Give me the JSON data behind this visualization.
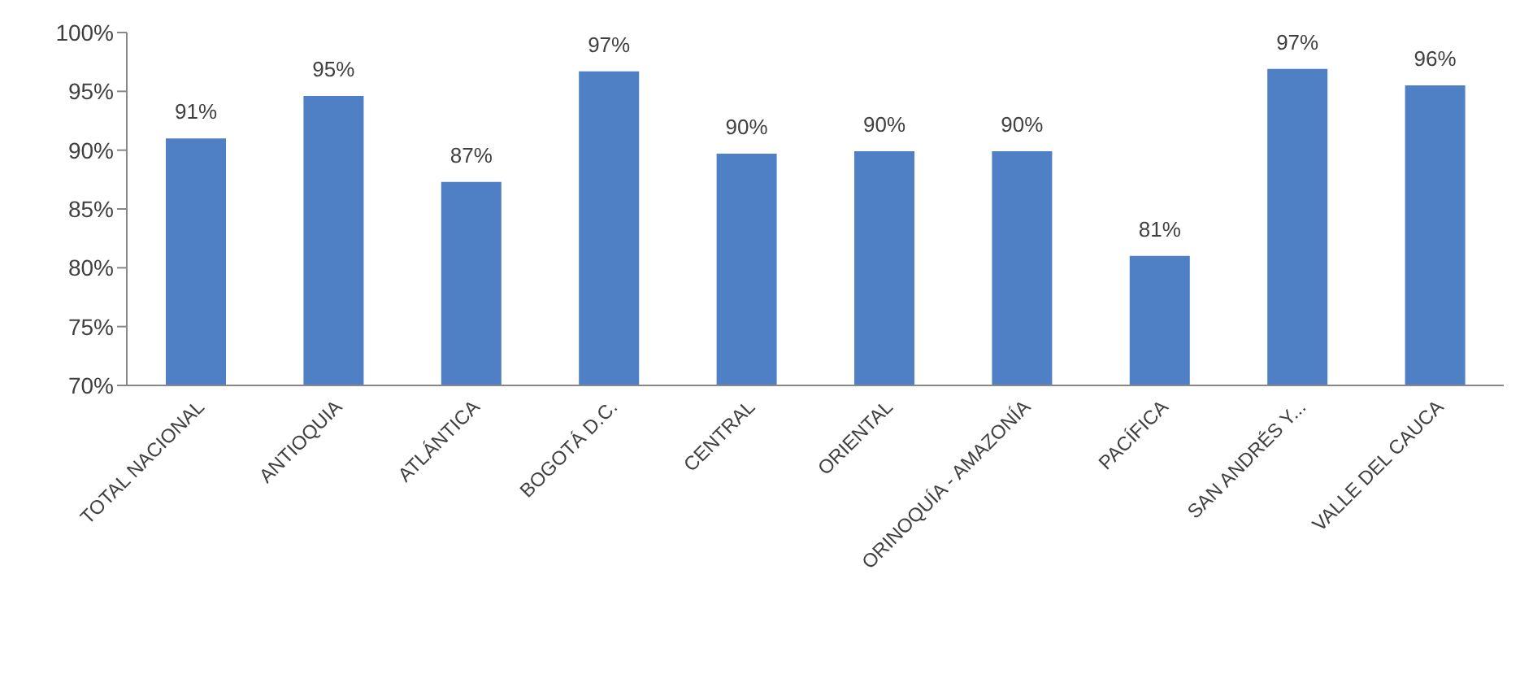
{
  "chart_data": {
    "type": "bar",
    "categories": [
      "TOTAL NACIONAL",
      "ANTIOQUIA",
      "ATLÁNTICA",
      "BOGOTÁ D.C.",
      "CENTRAL",
      "ORIENTAL",
      "ORINOQUÍA - AMAZONÍA",
      "PACÍFICA",
      "SAN ANDRÉS Y...",
      "VALLE DEL CAUCA"
    ],
    "values": [
      91,
      94.6,
      87.3,
      96.7,
      89.7,
      89.9,
      89.9,
      81,
      96.9,
      95.5
    ],
    "value_labels": [
      "91%",
      "95%",
      "87%",
      "97%",
      "90%",
      "90%",
      "90%",
      "81%",
      "97%",
      "96%"
    ],
    "color": "#4f7fc4",
    "ylim": [
      70,
      100
    ],
    "yticks": [
      {
        "value": 70,
        "label": "70%"
      },
      {
        "value": 75,
        "label": "75%"
      },
      {
        "value": 80,
        "label": "80%"
      },
      {
        "value": 85,
        "label": "85%"
      },
      {
        "value": 90,
        "label": "90%"
      },
      {
        "value": 95,
        "label": "95%"
      },
      {
        "value": 100,
        "label": "100%"
      }
    ],
    "grid": false,
    "legend": false
  }
}
